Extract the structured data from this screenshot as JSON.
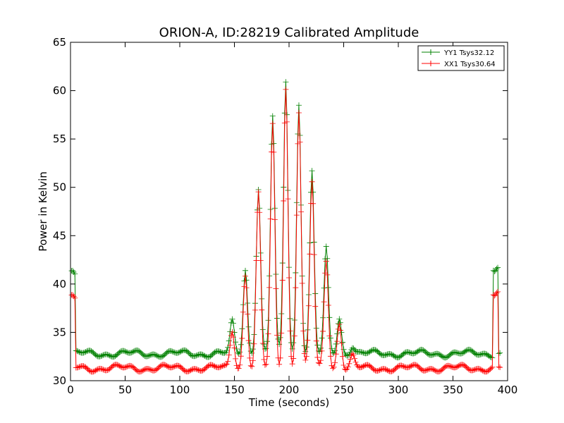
{
  "chart_data": {
    "type": "line",
    "title": "ORION-A, ID:28219 Calibrated Amplitude",
    "xlabel": "Time (seconds)",
    "ylabel": "Power in Kelvin",
    "xlim": [
      0,
      400
    ],
    "ylim": [
      30,
      65
    ],
    "xticks": [
      0,
      50,
      100,
      150,
      200,
      250,
      300,
      350,
      400
    ],
    "yticks": [
      30,
      35,
      40,
      45,
      50,
      55,
      60,
      65
    ],
    "grid": false,
    "legend_position": "top-right",
    "marker": "+",
    "series": [
      {
        "name": "YY1 Tsys32.12",
        "color": "#008000",
        "baseline": 32.8,
        "edge_spikes": [
          [
            2,
            41.2
          ],
          [
            389,
            41.5
          ]
        ],
        "peaks": [
          [
            148,
            36.0
          ],
          [
            160,
            41.5
          ],
          [
            172,
            50.0
          ],
          [
            185,
            57.3
          ],
          [
            197,
            61.0
          ],
          [
            209,
            58.7
          ],
          [
            221,
            51.5
          ],
          [
            234,
            43.5
          ],
          [
            246,
            36.5
          ],
          [
            258,
            33.7
          ]
        ]
      },
      {
        "name": "XX1 Tsys30.64",
        "color": "#ff0000",
        "baseline": 31.3,
        "edge_spikes": [
          [
            2,
            38.7
          ],
          [
            389,
            39.0
          ]
        ],
        "peaks": [
          [
            148,
            35.3
          ],
          [
            160,
            41.0
          ],
          [
            172,
            49.2
          ],
          [
            185,
            56.3
          ],
          [
            197,
            60.3
          ],
          [
            209,
            57.9
          ],
          [
            221,
            50.5
          ],
          [
            234,
            42.5
          ],
          [
            246,
            36.0
          ],
          [
            258,
            32.5
          ]
        ]
      }
    ]
  }
}
